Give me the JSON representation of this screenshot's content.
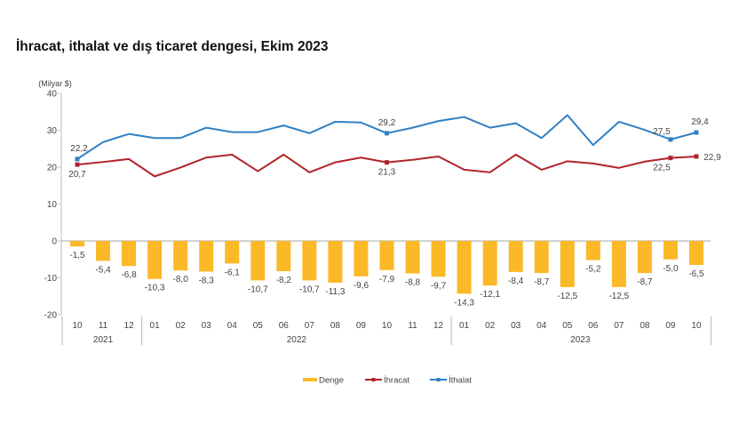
{
  "page": {
    "title": "İhracat, ithalat ve dış ticaret dengesi, Ekim 2023"
  },
  "chart_data": {
    "type": "bar+line",
    "title": "İhracat, ithalat ve dış ticaret dengesi, Ekim 2023",
    "ylabel": "(Milyar $)",
    "xlabel": "",
    "ylim": [
      -20,
      40
    ],
    "yticks": [
      40,
      30,
      20,
      10,
      0,
      -10,
      -20
    ],
    "ytick_labels": [
      "40",
      "30",
      "20",
      "10",
      "0",
      "-10",
      "-20"
    ],
    "grid": false,
    "categories": [
      "10",
      "11",
      "12",
      "01",
      "02",
      "03",
      "04",
      "05",
      "06",
      "07",
      "08",
      "09",
      "10",
      "11",
      "12",
      "01",
      "02",
      "03",
      "04",
      "05",
      "06",
      "07",
      "08",
      "09",
      "10"
    ],
    "year_groups": [
      {
        "label": "2021",
        "start": 0,
        "end": 2
      },
      {
        "label": "2022",
        "start": 3,
        "end": 14
      },
      {
        "label": "2023",
        "start": 15,
        "end": 24
      }
    ],
    "series": [
      {
        "name": "Denge",
        "type": "bar",
        "color": "#fbb927",
        "values": [
          -1.5,
          -5.4,
          -6.8,
          -10.3,
          -8.0,
          -8.3,
          -6.1,
          -10.7,
          -8.2,
          -10.7,
          -11.3,
          -9.6,
          -7.9,
          -8.8,
          -9.7,
          -14.3,
          -12.1,
          -8.4,
          -8.7,
          -12.5,
          -5.2,
          -12.5,
          -8.7,
          -5.0,
          -6.5
        ],
        "labels": [
          "-1,5",
          "-5,4",
          "-6,8",
          "-10,3",
          "-8,0",
          "-8,3",
          "-6,1",
          "-10,7",
          "-8,2",
          "-10,7",
          "-11,3",
          "-9,6",
          "-7,9",
          "-8,8",
          "-9,7",
          "-14,3",
          "-12,1",
          "-8,4",
          "-8,7",
          "-12,5",
          "-5,2",
          "-12,5",
          "-8,7",
          "-5,0",
          "-6,5"
        ]
      },
      {
        "name": "İhracat",
        "type": "line",
        "color": "#b0242c",
        "values": [
          20.7,
          21.4,
          22.2,
          17.5,
          19.9,
          22.6,
          23.4,
          18.9,
          23.4,
          18.6,
          21.3,
          22.6,
          21.3,
          22.0,
          22.9,
          19.3,
          18.6,
          23.4,
          19.3,
          21.6,
          21.0,
          19.8,
          21.5,
          22.5,
          22.9
        ],
        "marked_points": [
          {
            "index": 0,
            "label": "20,7"
          },
          {
            "index": 12,
            "label": "21,3"
          },
          {
            "index": 23,
            "label": "22,5"
          },
          {
            "index": 24,
            "label": "22,9"
          }
        ]
      },
      {
        "name": "İthalat",
        "type": "line",
        "color": "#2f80c4",
        "values": [
          22.2,
          26.8,
          29.0,
          27.9,
          27.9,
          30.7,
          29.5,
          29.5,
          31.3,
          29.2,
          32.3,
          32.1,
          29.2,
          30.7,
          32.5,
          33.6,
          30.7,
          31.9,
          27.9,
          34.1,
          26.0,
          32.3,
          30.1,
          27.5,
          29.4
        ],
        "marked_points": [
          {
            "index": 0,
            "label": "22,2"
          },
          {
            "index": 12,
            "label": "29,2"
          },
          {
            "index": 23,
            "label": "27,5"
          },
          {
            "index": 24,
            "label": "29,4"
          }
        ]
      }
    ],
    "legend": {
      "position": "bottom-center",
      "entries": [
        "Denge",
        "İhracat",
        "İthalat"
      ]
    }
  }
}
